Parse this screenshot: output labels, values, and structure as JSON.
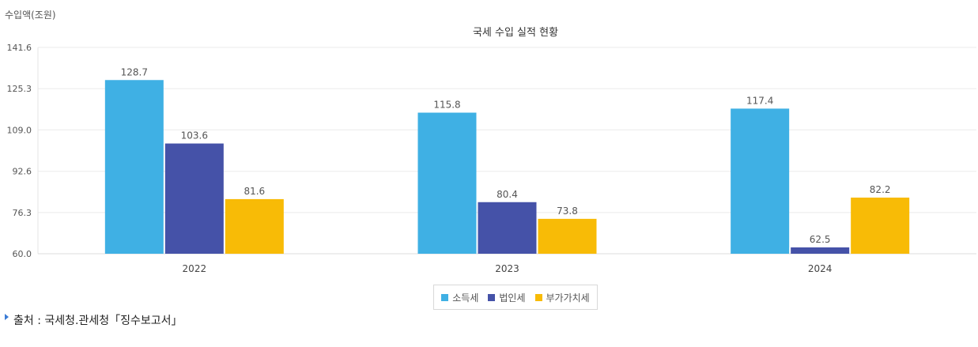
{
  "chart_data": {
    "type": "bar",
    "title": "국세 수입 실적 현황",
    "ylabel": "수입액(조원)",
    "xlabel": "",
    "categories": [
      "2022",
      "2023",
      "2024"
    ],
    "series": [
      {
        "name": "소득세",
        "values": [
          128.7,
          115.8,
          117.4
        ],
        "color": "#3fb0e4"
      },
      {
        "name": "법인세",
        "values": [
          103.6,
          80.4,
          62.5
        ],
        "color": "#4552a8"
      },
      {
        "name": "부가가치세",
        "values": [
          81.6,
          73.8,
          82.2
        ],
        "color": "#f8bb06"
      }
    ],
    "ylim": [
      60.0,
      141.6
    ],
    "yticks": [
      "60.0",
      "76.3",
      "92.6",
      "109.0",
      "125.3",
      "141.6"
    ],
    "grid": true,
    "legend_position": "bottom"
  },
  "source": {
    "label": "출처 : 국세청.관세청「징수보고서」"
  }
}
